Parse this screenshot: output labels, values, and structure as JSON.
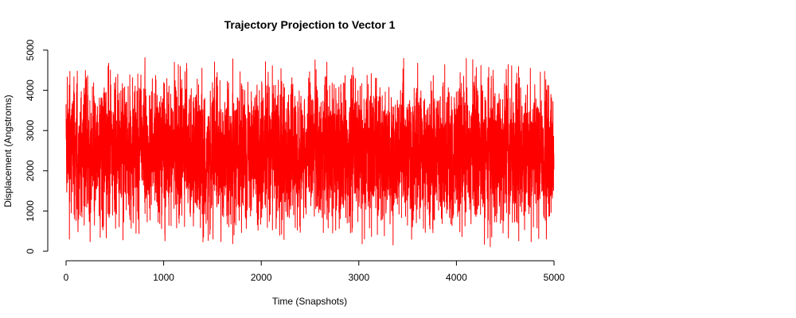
{
  "chart_data": {
    "type": "line",
    "title": "Trajectory Projection to Vector 1",
    "xlabel": "Time (Snapshots)",
    "ylabel": "Displacement (Angstroms)",
    "xlim": [
      0,
      5000
    ],
    "ylim": [
      0,
      5000
    ],
    "xticks": [
      "0",
      "1000",
      "2000",
      "3000",
      "4000",
      "5000"
    ],
    "yticks": [
      "0",
      "1000",
      "2000",
      "3000",
      "4000",
      "5000"
    ],
    "grid": false,
    "legend": "none",
    "series": [
      {
        "color": "#ff0000",
        "n_points": 5000,
        "x_range": [
          0,
          5000
        ],
        "y_range": [
          0,
          4900
        ],
        "y_mean": 2450,
        "pattern": "dense high-frequency oscillation spanning nearly the full y-range"
      }
    ]
  }
}
